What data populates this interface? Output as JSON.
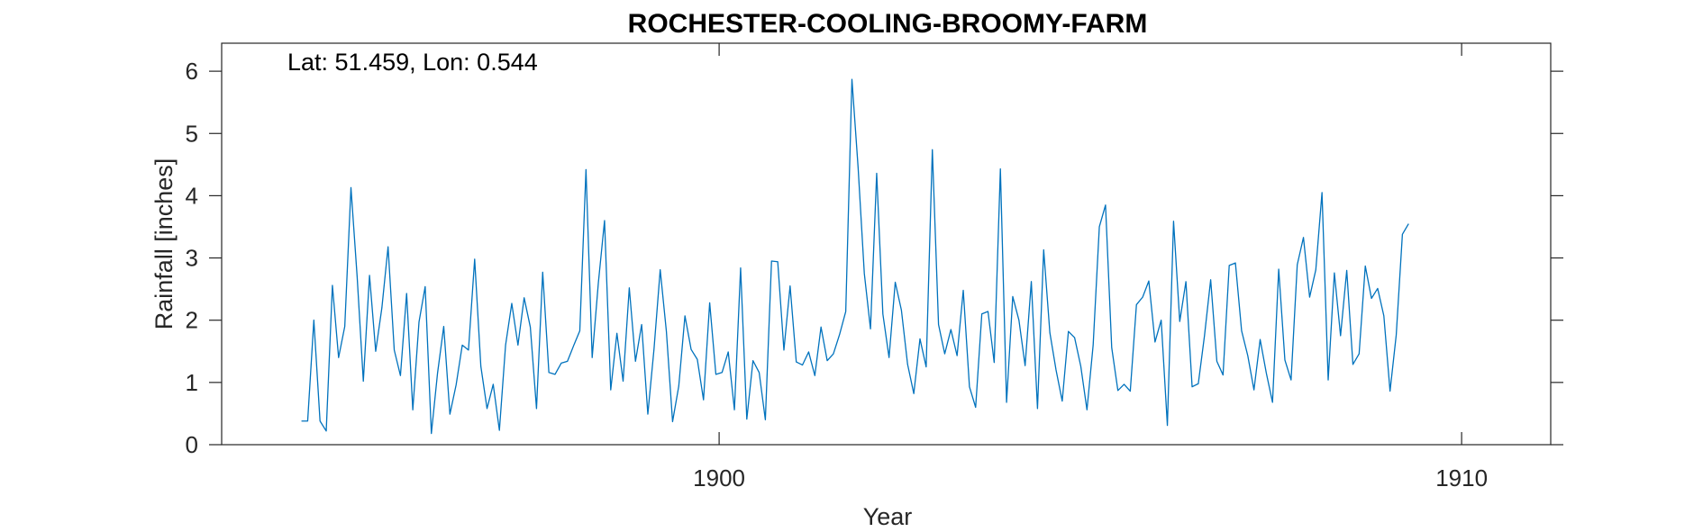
{
  "chart_data": {
    "type": "line",
    "title": "ROCHESTER-COOLING-BROOMY-FARM",
    "annotation": "Lat: 51.459, Lon: 0.544",
    "xlabel": "Year",
    "ylabel": "Rainfall [inches]",
    "xlim": [
      1893.3,
      1911.2
    ],
    "ylim": [
      0,
      6.45
    ],
    "xticks": [
      1900,
      1910
    ],
    "yticks": [
      0,
      1,
      2,
      3,
      4,
      5,
      6
    ],
    "grid": false,
    "line_color": "#0072BD",
    "series": [
      {
        "start_year": 1894.375,
        "step": 0.0833,
        "values": [
          0.38,
          0.38,
          2.0,
          0.38,
          0.22,
          2.56,
          1.4,
          1.9,
          4.13,
          2.7,
          1.02,
          2.72,
          1.5,
          2.2,
          3.18,
          1.52,
          1.11,
          2.43,
          0.56,
          1.97,
          2.54,
          0.18,
          1.15,
          1.9,
          0.49,
          0.96,
          1.6,
          1.52,
          2.98,
          1.26,
          0.58,
          0.97,
          0.23,
          1.6,
          2.27,
          1.6,
          2.36,
          1.89,
          0.58,
          2.77,
          1.16,
          1.13,
          1.31,
          1.34,
          1.59,
          1.83,
          4.42,
          1.4,
          2.6,
          3.6,
          0.88,
          1.79,
          1.02,
          2.52,
          1.34,
          1.93,
          0.49,
          1.54,
          2.81,
          1.82,
          0.37,
          0.94,
          2.07,
          1.53,
          1.37,
          0.72,
          2.28,
          1.13,
          1.16,
          1.49,
          0.56,
          2.84,
          0.41,
          1.35,
          1.16,
          0.4,
          2.95,
          2.94,
          1.52,
          2.55,
          1.33,
          1.28,
          1.49,
          1.11,
          1.89,
          1.35,
          1.46,
          1.77,
          2.14,
          5.87,
          4.45,
          2.75,
          1.86,
          4.36,
          2.1,
          1.4,
          2.61,
          2.16,
          1.29,
          0.82,
          1.7,
          1.25,
          4.74,
          1.93,
          1.46,
          1.85,
          1.43,
          2.48,
          0.93,
          0.6,
          2.1,
          2.14,
          1.32,
          4.43,
          0.68,
          2.38,
          2.0,
          1.27,
          2.62,
          0.58,
          3.13,
          1.8,
          1.2,
          0.7,
          1.82,
          1.72,
          1.26,
          0.56,
          1.6,
          3.5,
          3.85,
          1.56,
          0.87,
          0.97,
          0.86,
          2.25,
          2.37,
          2.63,
          1.65,
          2.0,
          0.31,
          3.59,
          1.98,
          2.62,
          0.93,
          0.98,
          1.75,
          2.65,
          1.34,
          1.12,
          2.88,
          2.92,
          1.83,
          1.43,
          0.88,
          1.69,
          1.15,
          0.68,
          2.82,
          1.36,
          1.04,
          2.89,
          3.33,
          2.37,
          2.81,
          4.05,
          1.04,
          2.76,
          1.75,
          2.8,
          1.29,
          1.46,
          2.87,
          2.35,
          2.51,
          2.07,
          0.86,
          1.76,
          3.38,
          3.55
        ]
      }
    ]
  }
}
